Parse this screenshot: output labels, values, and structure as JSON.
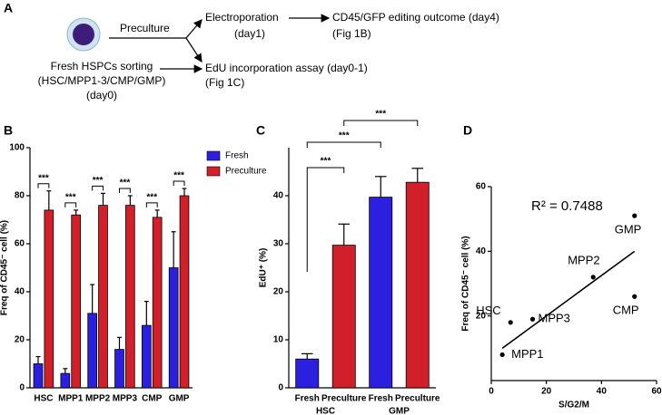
{
  "panels": [
    "A",
    "B",
    "C",
    "D"
  ],
  "diagram": {
    "step": "Preculture",
    "sorting": "Fresh HSPCs sorting",
    "populations": "(HSC/MPP1-3/CMP/GMP)",
    "day0": "(day0)",
    "electroporation": "Electroporation",
    "day1": "(day1)",
    "outcome": "CD45/GFP editing outcome (day4)",
    "fig1b": "(Fig 1B)",
    "edu": "EdU incorporation assay (day0-1)",
    "fig1c": "(Fig 1C)"
  },
  "chart_data": [
    {
      "type": "bar",
      "ylabel": "Freq of CD45⁻ cell (%)",
      "categories": [
        "HSC",
        "MPP1",
        "MPP2",
        "MPP3",
        "CMP",
        "GMP"
      ],
      "series": [
        {
          "name": "Fresh",
          "color": "#2b1fe0",
          "values": [
            10,
            6,
            31,
            16,
            26,
            50
          ],
          "errors": [
            3,
            2,
            12,
            5,
            10,
            15
          ]
        },
        {
          "name": "Preculture",
          "color": "#d1202a",
          "values": [
            74,
            72,
            76,
            76,
            71,
            80
          ],
          "errors": [
            8,
            2,
            5,
            4,
            3,
            3
          ]
        }
      ],
      "ylim": [
        0,
        100
      ],
      "yticks": [
        0,
        20,
        40,
        60,
        80,
        100
      ],
      "significance": [
        "***",
        "***",
        "***",
        "***",
        "***",
        "***"
      ],
      "legend": "top-right"
    },
    {
      "type": "bar",
      "ylabel": "EdU⁺ (%)",
      "categories": [
        "Fresh",
        "Preculture",
        "Fresh",
        "Preculture"
      ],
      "groups": [
        "HSC",
        "GMP"
      ],
      "values": [
        6,
        29.7,
        39.7,
        42.8
      ],
      "errors": [
        1.1,
        4.4,
        4.3,
        2.9
      ],
      "colors": [
        "#2b1fe0",
        "#d1202a",
        "#2b1fe0",
        "#d1202a"
      ],
      "ylim": [
        0,
        50
      ],
      "yticks": [
        0,
        10,
        20,
        30,
        40
      ],
      "significance": [
        "***",
        "***",
        "***"
      ]
    },
    {
      "type": "scatter",
      "xlabel": "S/G2/M",
      "ylabel": "Freq of CD45⁻ cell (%)",
      "annotation": "R² = 0.7488",
      "labels": [
        "HSC",
        "MPP1",
        "MPP2",
        "MPP3",
        "CMP",
        "GMP"
      ],
      "label_color": "#d1202a",
      "color": "#000000",
      "x": [
        7,
        4,
        37,
        15,
        52,
        52
      ],
      "y": [
        18,
        8,
        32,
        19,
        26,
        51
      ],
      "fit_line": {
        "x": [
          4,
          52
        ],
        "y": [
          10,
          40
        ]
      },
      "xlim": [
        0,
        60
      ],
      "xticks": [
        0,
        20,
        40,
        60
      ],
      "ylim": [
        0,
        60
      ],
      "yticks": [
        20,
        40,
        60
      ]
    }
  ]
}
